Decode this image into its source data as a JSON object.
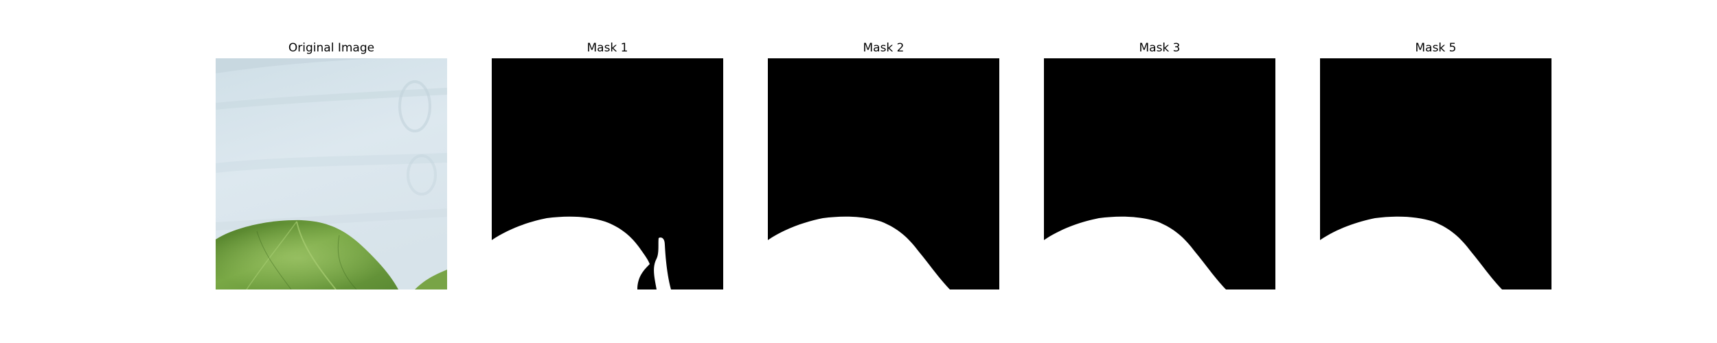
{
  "figure": {
    "panels": [
      {
        "title": "Original Image",
        "kind": "photo"
      },
      {
        "title": "Mask 1",
        "kind": "mask",
        "variant": "with-stem"
      },
      {
        "title": "Mask 2",
        "kind": "mask",
        "variant": "plain"
      },
      {
        "title": "Mask 3",
        "kind": "mask",
        "variant": "plain"
      },
      {
        "title": "Mask 5",
        "kind": "mask",
        "variant": "plain"
      }
    ]
  },
  "colors": {
    "mask_background": "#000000",
    "mask_foreground": "#ffffff",
    "photo_background": "#dbe7ee",
    "leaf_dark": "#4f7d2a",
    "leaf_light": "#8dba55"
  }
}
